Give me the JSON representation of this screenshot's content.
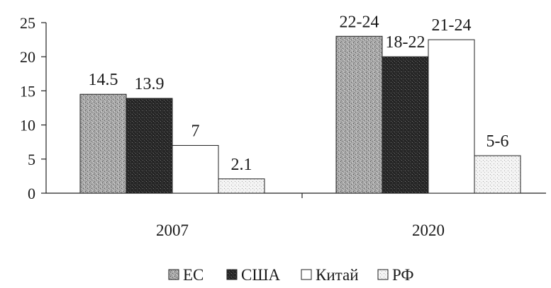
{
  "chart_data": {
    "type": "bar",
    "categories": [
      "2007",
      "2020"
    ],
    "series": [
      {
        "name": "ЕС",
        "values": [
          14.5,
          23
        ],
        "labels": [
          "14.5",
          "22-24"
        ],
        "fill": "#9a9a9a",
        "pattern": "speckle-medium"
      },
      {
        "name": "США",
        "values": [
          13.9,
          20
        ],
        "labels": [
          "13.9",
          "18-22"
        ],
        "fill": "#2a2a2a",
        "pattern": "speckle-dark"
      },
      {
        "name": "Китай",
        "values": [
          7,
          22.5
        ],
        "labels": [
          "7",
          "21-24"
        ],
        "fill": "#ffffff",
        "pattern": "none"
      },
      {
        "name": "РФ",
        "values": [
          2.1,
          5.5
        ],
        "labels": [
          "2.1",
          "5-6"
        ],
        "fill": "#eeeeee",
        "pattern": "speckle-light"
      }
    ],
    "y_ticks": [
      "0",
      "5",
      "10",
      "15",
      "20",
      "25"
    ],
    "ylim": [
      0,
      25
    ],
    "legend_position": "bottom",
    "grid": false
  }
}
